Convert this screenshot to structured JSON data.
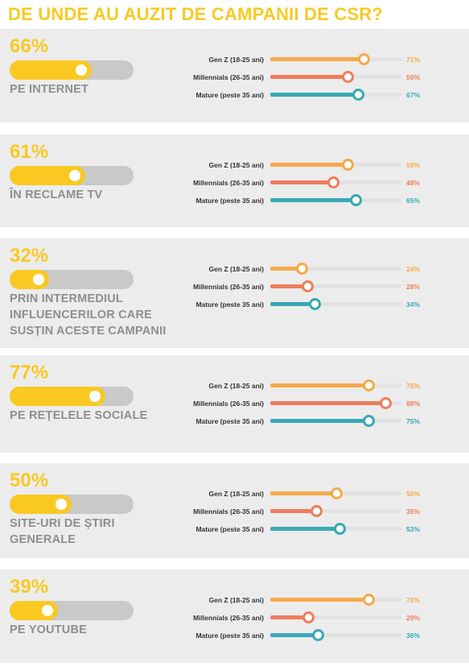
{
  "title": "DE UNDE AU AUZIT DE CAMPANII DE CSR?",
  "colors": {
    "accent": "#f9c922",
    "gen_z": "#f5a94a",
    "millennials": "#ef7d5c",
    "mature": "#3aa8b6",
    "label_gray": "#8e8e8e",
    "panel_bg": "#ececec"
  },
  "chart_data": {
    "type": "bar",
    "title": "DE UNDE AU AUZIT DE CAMPANII DE CSR?",
    "series_names": [
      "Gen Z (18-25 ani)",
      "Millennials (26-35 ani)",
      "Mature (peste 35 ani)"
    ],
    "sources": [
      {
        "total_label": "66%",
        "total": 66,
        "label": "PE INTERNET",
        "groups": [
          {
            "name": "Gen Z (18-25 ani)",
            "value": 71,
            "value_label": "71%"
          },
          {
            "name": "Millennials (26-35 ani)",
            "value": 59,
            "value_label": "59%"
          },
          {
            "name": "Mature (peste 35 ani)",
            "value": 67,
            "value_label": "67%"
          }
        ]
      },
      {
        "total_label": "61%",
        "total": 61,
        "label": "ÎN RECLAME TV",
        "groups": [
          {
            "name": "Gen Z (18-25 ani)",
            "value": 59,
            "value_label": "59%"
          },
          {
            "name": "Millennials (26-35 ani)",
            "value": 48,
            "value_label": "48%"
          },
          {
            "name": "Mature (peste 35 ani)",
            "value": 65,
            "value_label": "65%"
          }
        ]
      },
      {
        "total_label": "32%",
        "total": 32,
        "label": "PRIN INTERMEDIUL INFLUENCERILOR CARE SUSȚIN ACESTE CAMPANII",
        "groups": [
          {
            "name": "Gen Z (18-25 ani)",
            "value": 24,
            "value_label": "24%"
          },
          {
            "name": "Millennials (26-35 ani)",
            "value": 28,
            "value_label": "28%"
          },
          {
            "name": "Mature (peste 35 ani)",
            "value": 34,
            "value_label": "34%"
          }
        ]
      },
      {
        "total_label": "77%",
        "total": 77,
        "label": "PE REȚELELE SOCIALE",
        "groups": [
          {
            "name": "Gen Z (18-25 ani)",
            "value": 75,
            "value_label": "75%"
          },
          {
            "name": "Millennials (26-35 ani)",
            "value": 88,
            "value_label": "88%"
          },
          {
            "name": "Mature (peste 35 ani)",
            "value": 75,
            "value_label": "75%"
          }
        ]
      },
      {
        "total_label": "50%",
        "total": 50,
        "label": "SITE-URI DE ȘTIRI GENERALE",
        "groups": [
          {
            "name": "Gen Z (18-25 ani)",
            "value": 50,
            "value_label": "50%"
          },
          {
            "name": "Millennials (26-35 ani)",
            "value": 35,
            "value_label": "35%"
          },
          {
            "name": "Mature (peste 35 ani)",
            "value": 53,
            "value_label": "53%"
          }
        ]
      },
      {
        "total_label": "39%",
        "total": 39,
        "label": "PE YOUTUBE",
        "groups": [
          {
            "name": "Gen Z (18-25 ani)",
            "value": 75,
            "value_label": "75%"
          },
          {
            "name": "Millennials (26-35 ani)",
            "value": 29,
            "value_label": "29%"
          },
          {
            "name": "Mature (peste 35 ani)",
            "value": 36,
            "value_label": "36%"
          }
        ]
      }
    ],
    "ylim": [
      0,
      100
    ],
    "legend": "none"
  }
}
